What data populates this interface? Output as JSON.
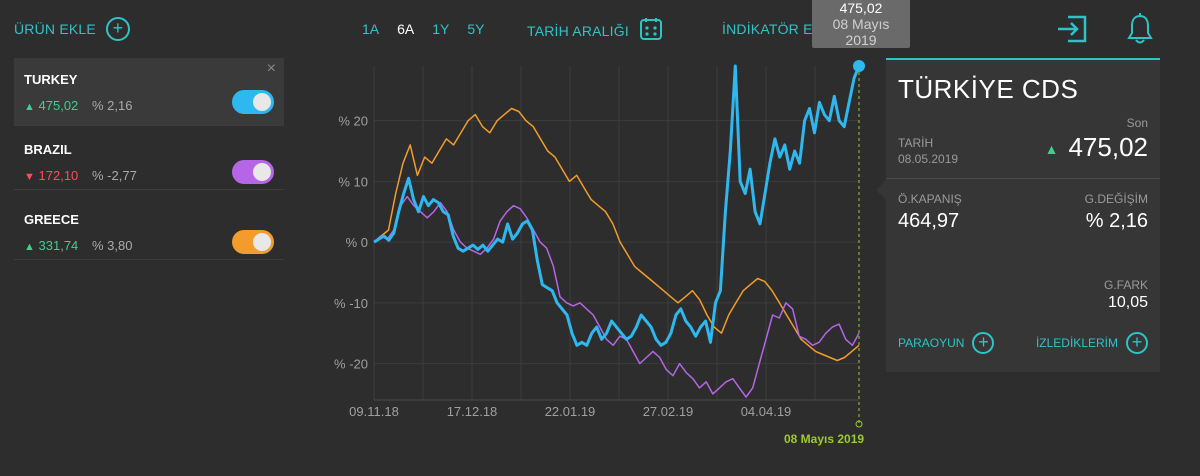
{
  "header": {
    "add_product": "ÜRÜN EKLE",
    "periods": [
      "1A",
      "6A",
      "1Y",
      "5Y"
    ],
    "active_period": "6A",
    "date_range": "TARİH ARALIĞI",
    "indicator": "İNDİKATÖR EKLE"
  },
  "assets": [
    {
      "name": "TURKEY",
      "arrow": "▲",
      "value": "475,02",
      "pct": "% 2,16",
      "color": "#2fb8f0",
      "dir": "up"
    },
    {
      "name": "BRAZIL",
      "arrow": "▼",
      "value": "172,10",
      "pct": "% -2,77",
      "color": "#b565e6",
      "dir": "down"
    },
    {
      "name": "GREECE",
      "arrow": "▲",
      "value": "331,74",
      "pct": "% 3,80",
      "color": "#f39c2b",
      "dir": "up"
    }
  ],
  "asset_close": "×",
  "tooltip": {
    "value": "475,02",
    "date_line1": "08 Mayıs",
    "date_line2": "2019"
  },
  "cursor_date": "08 Mayıs 2019",
  "panel": {
    "title": "TÜRKİYE CDS",
    "son_label": "Son",
    "date_label": "TARİH",
    "date_value": "08.05.2019",
    "arrow": "▲",
    "last": "475,02",
    "prev_close_label": "Ö.KAPANIŞ",
    "prev_close": "464,97",
    "change_label": "G.DEĞİŞİM",
    "change": "% 2,16",
    "diff_label": "G.FARK",
    "diff": "10,05",
    "btn_paraoyun": "PARAOYUN",
    "btn_followed": "İZLEDİKLERİM"
  },
  "chart_data": {
    "type": "line",
    "title": "",
    "xlabel": "",
    "ylabel": "",
    "x_ticks": [
      "09.11.18",
      "17.12.18",
      "22.01.19",
      "27.02.19",
      "04.04.19"
    ],
    "y_ticks": [
      "% 20",
      "% 10",
      "% 0",
      "% -10",
      "% -20"
    ],
    "y_tick_values": [
      20,
      10,
      0,
      -10,
      -20
    ],
    "ylim": [
      -26,
      29
    ],
    "series": [
      {
        "name": "TURKEY",
        "color": "#2fb8f0",
        "width": 3,
        "values": [
          0,
          0.5,
          1,
          0.3,
          1.5,
          5,
          8,
          10.5,
          7,
          5,
          7.5,
          6,
          7,
          6.5,
          5,
          4.5,
          1,
          -1,
          -1.5,
          -1,
          -0.5,
          -1.2,
          -0.5,
          -1.5,
          -0.5,
          0.5,
          0,
          3,
          0.5,
          1.5,
          3,
          3.5,
          2,
          -3,
          -7,
          -7.5,
          -8,
          -10,
          -11,
          -12,
          -15,
          -17,
          -16.5,
          -17,
          -15,
          -14,
          -16,
          -15,
          -13,
          -14,
          -15,
          -16,
          -15.5,
          -14,
          -12,
          -13,
          -14,
          -16,
          -17,
          -16.5,
          -15,
          -12,
          -11,
          -13,
          -14,
          -15.5,
          -14,
          -13,
          -16.5,
          -10,
          -8,
          5,
          15,
          29,
          10,
          8,
          12,
          5,
          3,
          8,
          13,
          17,
          14,
          16,
          12,
          15,
          13,
          20,
          22,
          18,
          23,
          21,
          20,
          24,
          20,
          19,
          23,
          27,
          29
        ]
      },
      {
        "name": "BRAZIL",
        "color": "#b565e6",
        "width": 1.5,
        "values": [
          0,
          1,
          0.5,
          2,
          6,
          7.5,
          6,
          5,
          4,
          5,
          6.5,
          5,
          2,
          0,
          -1,
          -1.5,
          -2,
          -1,
          0.5,
          3.5,
          5,
          6,
          5.5,
          4,
          2,
          0,
          -1,
          -4,
          -9,
          -10,
          -10.5,
          -10,
          -11,
          -12,
          -14,
          -16,
          -17,
          -15.5,
          -16,
          -18,
          -20,
          -19,
          -18,
          -19,
          -21,
          -22,
          -20,
          -21.5,
          -22.5,
          -24,
          -23,
          -25,
          -24,
          -23,
          -22.5,
          -24,
          -25.5,
          -24,
          -20,
          -16,
          -12,
          -12.5,
          -10,
          -11,
          -15.5,
          -16,
          -17,
          -16.5,
          -15,
          -14,
          -13.5,
          -16,
          -17,
          -15
        ]
      },
      {
        "name": "GREECE",
        "color": "#f39c2b",
        "width": 1.5,
        "values": [
          0,
          1,
          2,
          8,
          13,
          16,
          11,
          14,
          13,
          15,
          17,
          16,
          18,
          20,
          21,
          19,
          18,
          20,
          21,
          22,
          21.5,
          20,
          19,
          17,
          15,
          14,
          12,
          10,
          11,
          9,
          7,
          6,
          5,
          3,
          0,
          -2,
          -4,
          -5,
          -6,
          -7,
          -8,
          -9,
          -10,
          -9,
          -8,
          -9.5,
          -12,
          -14,
          -15,
          -12,
          -10,
          -8,
          -7,
          -6,
          -6.5,
          -8,
          -10,
          -12,
          -14,
          -16,
          -17,
          -18,
          -18.5,
          -19,
          -19.5,
          -19,
          -18,
          -17
        ]
      }
    ]
  }
}
